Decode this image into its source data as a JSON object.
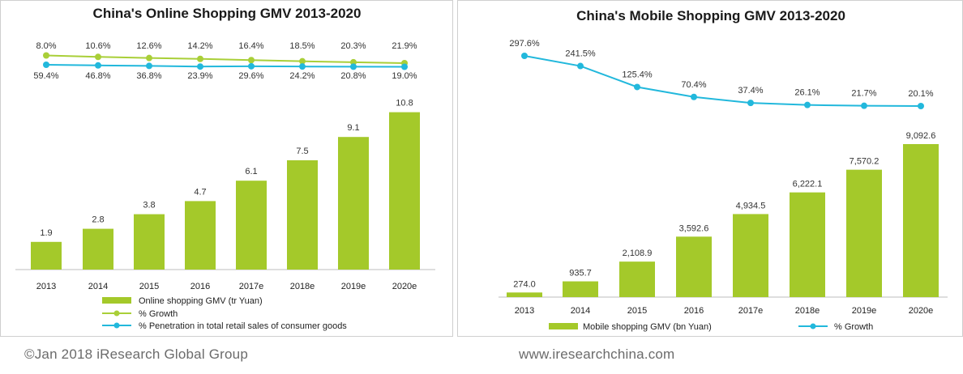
{
  "footer": {
    "left": "©Jan 2018 iResearch Global Group",
    "right": "www.iresearchchina.com"
  },
  "colors": {
    "bar": "#a4c92a",
    "growth_line": "#a9cf38",
    "penetration_line": "#22b8dc"
  },
  "chart_data": [
    {
      "type": "bar",
      "title": "China's Online Shopping GMV 2013-2020",
      "categories": [
        "2013",
        "2014",
        "2015",
        "2016",
        "2017e",
        "2018e",
        "2019e",
        "2020e"
      ],
      "series": [
        {
          "name": "Online shopping GMV (tr Yuan)",
          "type": "bar",
          "values": [
            1.9,
            2.8,
            3.8,
            4.7,
            6.1,
            7.5,
            9.1,
            10.8
          ],
          "labels": [
            "1.9",
            "2.8",
            "3.8",
            "4.7",
            "6.1",
            "7.5",
            "9.1",
            "10.8"
          ]
        },
        {
          "name": "% Growth",
          "type": "line",
          "values": [
            59.4,
            46.8,
            36.8,
            23.9,
            29.6,
            24.2,
            20.8,
            19.0
          ],
          "labels": [
            "59.4%",
            "46.8%",
            "36.8%",
            "23.9%",
            "29.6%",
            "24.2%",
            "20.8%",
            "19.0%"
          ]
        },
        {
          "name": "% Penetration in total retail sales of consumer goods",
          "type": "line",
          "values": [
            8.0,
            10.6,
            12.6,
            14.2,
            16.4,
            18.5,
            20.3,
            21.9
          ],
          "labels": [
            "8.0%",
            "10.6%",
            "12.6%",
            "14.2%",
            "16.4%",
            "18.5%",
            "20.3%",
            "21.9%"
          ]
        }
      ],
      "legend_placement": "bottom",
      "grid": false
    },
    {
      "type": "bar",
      "title": "China's Mobile Shopping GMV 2013-2020",
      "categories": [
        "2013",
        "2014",
        "2015",
        "2016",
        "2017e",
        "2018e",
        "2019e",
        "2020e"
      ],
      "series": [
        {
          "name": "Mobile shopping GMV (bn Yuan)",
          "type": "bar",
          "values": [
            274.0,
            935.7,
            2108.9,
            3592.6,
            4934.5,
            6222.1,
            7570.2,
            9092.6
          ],
          "labels": [
            "274.0",
            "935.7",
            "2,108.9",
            "3,592.6",
            "4,934.5",
            "6,222.1",
            "7,570.2",
            "9,092.6"
          ]
        },
        {
          "name": "% Growth",
          "type": "line",
          "values": [
            297.6,
            241.5,
            125.4,
            70.4,
            37.4,
            26.1,
            21.7,
            20.1
          ],
          "labels": [
            "297.6%",
            "241.5%",
            "125.4%",
            "70.4%",
            "37.4%",
            "26.1%",
            "21.7%",
            "20.1%"
          ]
        }
      ],
      "legend_placement": "bottom",
      "grid": false
    }
  ]
}
